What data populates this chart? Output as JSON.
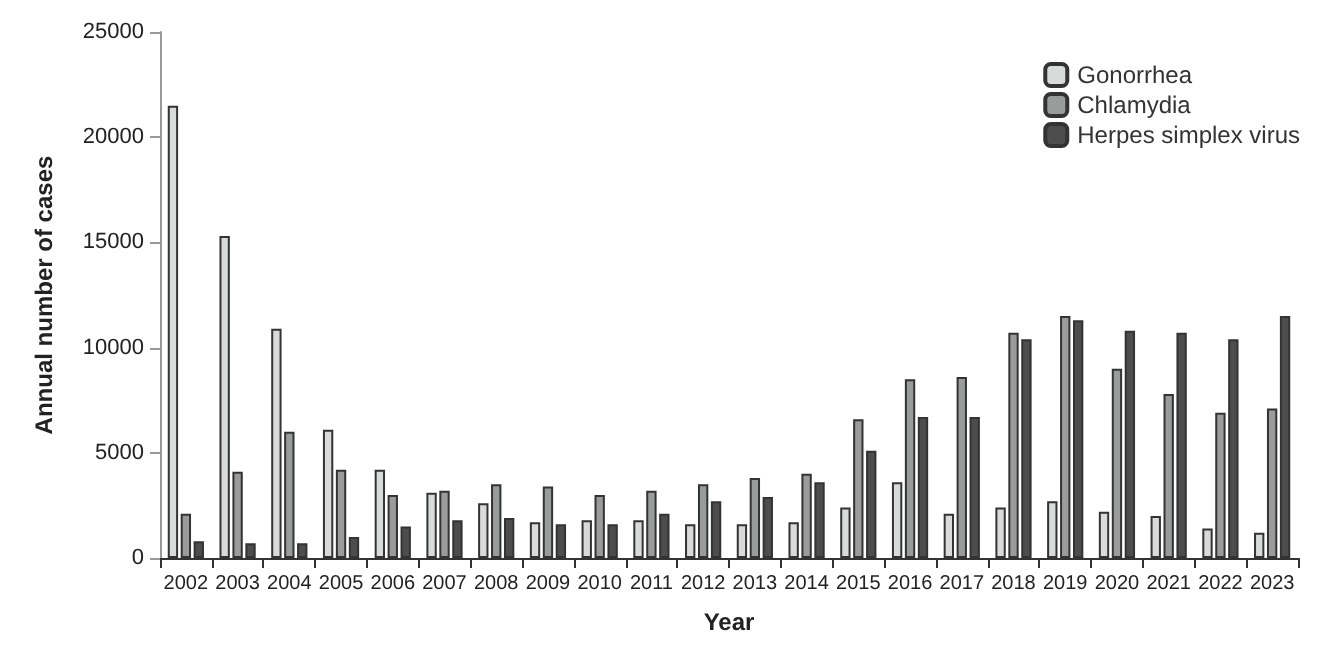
{
  "chart_data": {
    "type": "bar",
    "xlabel": "Year",
    "ylabel": "Annual number of cases",
    "categories": [
      "2002",
      "2003",
      "2004",
      "2005",
      "2006",
      "2007",
      "2008",
      "2009",
      "2010",
      "2011",
      "2012",
      "2013",
      "2014",
      "2015",
      "2016",
      "2017",
      "2018",
      "2019",
      "2020",
      "2021",
      "2022",
      "2023"
    ],
    "series": [
      {
        "name": "Gonorrhea",
        "color": "#d9dbdb",
        "values": [
          21500,
          15300,
          10900,
          6100,
          4200,
          3100,
          2600,
          1700,
          1800,
          1800,
          1600,
          1600,
          1700,
          2400,
          3600,
          2100,
          2400,
          2700,
          2200,
          2000,
          1400,
          1200
        ]
      },
      {
        "name": "Chlamydia",
        "color": "#9a9c9c",
        "values": [
          2100,
          4100,
          6000,
          4200,
          3000,
          3200,
          3500,
          3400,
          3000,
          3200,
          3500,
          3800,
          4000,
          6600,
          8500,
          8600,
          10700,
          11500,
          9000,
          7800,
          6900,
          7100
        ]
      },
      {
        "name": "Herpes simplex virus",
        "color": "#4d4d4d",
        "values": [
          800,
          700,
          700,
          1000,
          1500,
          1800,
          1900,
          1600,
          1600,
          2100,
          2700,
          2900,
          3600,
          5100,
          6700,
          6700,
          10400,
          11300,
          10800,
          10700,
          10400,
          11500
        ]
      }
    ],
    "ylim": [
      0,
      25000
    ],
    "yticks": [
      0,
      5000,
      10000,
      15000,
      20000,
      25000
    ],
    "grid": false,
    "legend": "top right"
  }
}
